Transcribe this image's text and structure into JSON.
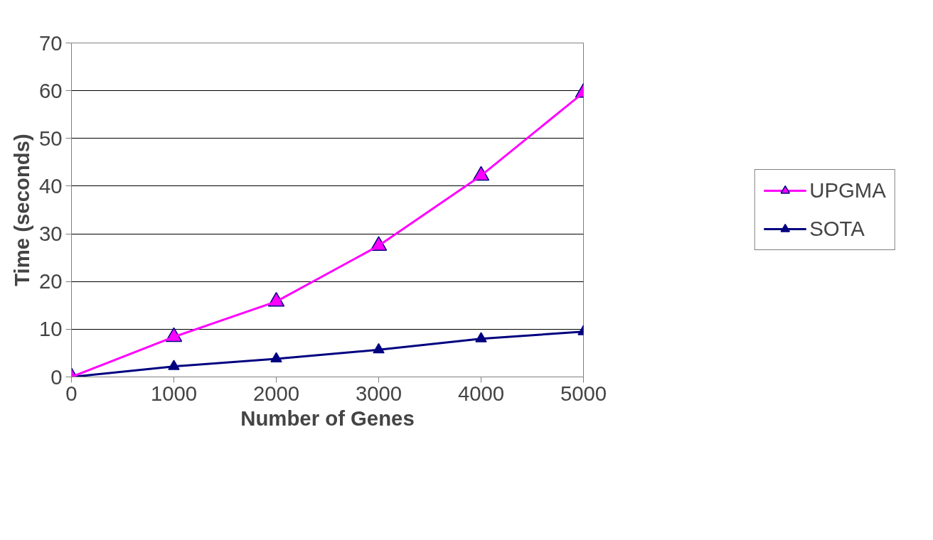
{
  "chart_data": {
    "type": "line",
    "xlabel": "Number of Genes",
    "ylabel": "Time (seconds)",
    "x": [
      0,
      1000,
      2000,
      3000,
      4000,
      5000
    ],
    "series": [
      {
        "name": "UPGMA",
        "color": "#ff00ff",
        "values": [
          0,
          8.4,
          15.8,
          27.5,
          42.2,
          59.6
        ]
      },
      {
        "name": "SOTA",
        "color": "#000080",
        "values": [
          0,
          2.2,
          3.8,
          5.7,
          8.0,
          9.5
        ]
      }
    ],
    "xlim": [
      0,
      5000
    ],
    "xticks": [
      0,
      1000,
      2000,
      3000,
      4000,
      5000
    ],
    "ylim": [
      0,
      70
    ],
    "yticks": [
      0,
      10,
      20,
      30,
      40,
      50,
      60,
      70
    ],
    "grid": "y",
    "legend": "right",
    "marker": "triangle",
    "line_style": "solid"
  }
}
